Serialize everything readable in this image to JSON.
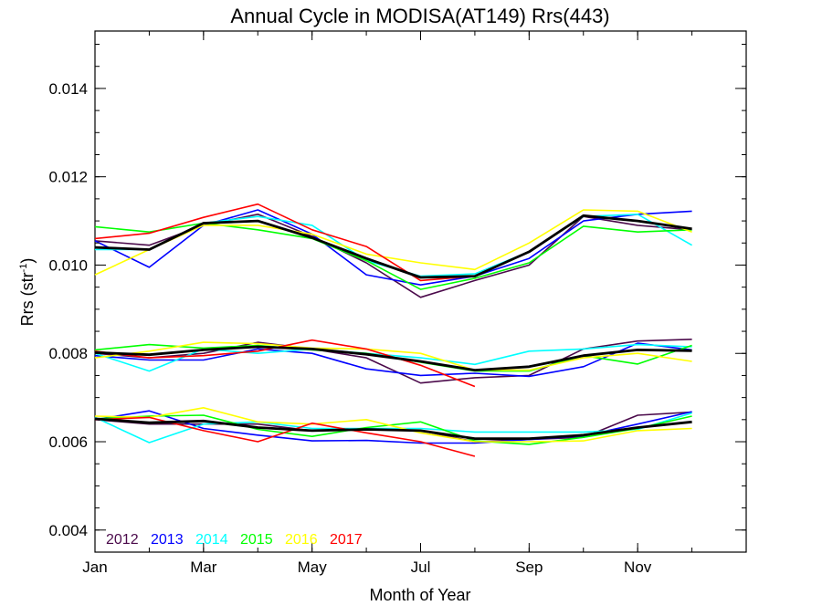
{
  "chart_data": {
    "type": "line",
    "title": "Annual Cycle in MODISA(AT149) Rrs(443)",
    "xlabel": "Month of Year",
    "ylabel": "Rrs (str",
    "ylabel_sup": "-1",
    "ylabel_close": ")",
    "xlim": [
      1,
      13
    ],
    "ylim": [
      0.0035,
      0.0153
    ],
    "x_ticks": [
      {
        "value": 1,
        "label": "Jan"
      },
      {
        "value": 3,
        "label": "Mar"
      },
      {
        "value": 5,
        "label": "May"
      },
      {
        "value": 7,
        "label": "Jul"
      },
      {
        "value": 9,
        "label": "Sep"
      },
      {
        "value": 11,
        "label": "Nov"
      }
    ],
    "y_ticks": [
      {
        "value": 0.004,
        "label": "0.004"
      },
      {
        "value": 0.006,
        "label": "0.006"
      },
      {
        "value": 0.008,
        "label": "0.008"
      },
      {
        "value": 0.01,
        "label": "0.010"
      },
      {
        "value": 0.012,
        "label": "0.012"
      },
      {
        "value": 0.014,
        "label": "0.014"
      }
    ],
    "grid": false,
    "legend_position": "bottom-left",
    "x": [
      1,
      2,
      3,
      4,
      5,
      6,
      7,
      8,
      9,
      10,
      11,
      12
    ],
    "series": [
      {
        "name": "2012",
        "color": "#4b0a4b",
        "groups": [
          [
            0.01055,
            0.01045,
            0.0109,
            0.01115,
            0.01065,
            0.01005,
            0.00927,
            0.00965,
            0.01,
            0.0111,
            0.0109,
            0.0108
          ],
          [
            0.008,
            0.0079,
            0.008,
            0.00825,
            0.0081,
            0.0079,
            0.00733,
            0.00745,
            0.0075,
            0.0081,
            0.00828,
            0.00832
          ],
          [
            0.0065,
            0.0064,
            0.0064,
            0.0064,
            0.00625,
            0.0063,
            0.00625,
            0.006,
            0.00605,
            0.0061,
            0.0066,
            0.00667
          ]
        ]
      },
      {
        "name": "2013",
        "color": "#0000ff",
        "groups": [
          [
            0.01055,
            0.00995,
            0.0109,
            0.01125,
            0.0107,
            0.00978,
            0.00955,
            0.00975,
            0.01015,
            0.011,
            0.01115,
            0.01122
          ],
          [
            0.00795,
            0.00785,
            0.00785,
            0.0081,
            0.008,
            0.00765,
            0.0075,
            0.00755,
            0.00748,
            0.0077,
            0.00823,
            0.00808
          ],
          [
            0.0065,
            0.0067,
            0.0063,
            0.00615,
            0.00602,
            0.00603,
            0.00597,
            0.00597,
            0.00605,
            0.00613,
            0.0064,
            0.00668
          ]
        ]
      },
      {
        "name": "2014",
        "color": "#00ffff",
        "groups": [
          [
            0.01035,
            0.01035,
            0.01095,
            0.0111,
            0.0109,
            0.0101,
            0.00975,
            0.0098,
            0.0103,
            0.0111,
            0.01115,
            0.01045
          ],
          [
            0.008,
            0.0076,
            0.0081,
            0.008,
            0.0081,
            0.008,
            0.0079,
            0.00775,
            0.00805,
            0.0081,
            0.0082,
            0.00815
          ],
          [
            0.00655,
            0.00598,
            0.0064,
            0.00645,
            0.0063,
            0.0063,
            0.0063,
            0.00622,
            0.00622,
            0.00622,
            0.00628,
            0.00665
          ]
        ]
      },
      {
        "name": "2015",
        "color": "#00ff00",
        "groups": [
          [
            0.01087,
            0.01075,
            0.01095,
            0.0108,
            0.0106,
            0.0101,
            0.00945,
            0.0097,
            0.01005,
            0.01088,
            0.01075,
            0.0108
          ],
          [
            0.00808,
            0.0082,
            0.00812,
            0.00818,
            0.00808,
            0.008,
            0.0078,
            0.0076,
            0.0076,
            0.00795,
            0.00776,
            0.00818
          ],
          [
            0.00652,
            0.00658,
            0.0066,
            0.00628,
            0.00612,
            0.00632,
            0.00645,
            0.00602,
            0.00594,
            0.0061,
            0.0063,
            0.00658
          ]
        ]
      },
      {
        "name": "2016",
        "color": "#ffff00",
        "groups": [
          [
            0.00978,
            0.01035,
            0.0109,
            0.0109,
            0.0107,
            0.01025,
            0.01005,
            0.0099,
            0.0105,
            0.01125,
            0.01122,
            0.01075
          ],
          [
            0.0079,
            0.00805,
            0.00825,
            0.00822,
            0.00812,
            0.0081,
            0.008,
            0.00762,
            0.00762,
            0.0079,
            0.008,
            0.00782
          ],
          [
            0.00658,
            0.00655,
            0.00677,
            0.00645,
            0.0064,
            0.0065,
            0.0062,
            0.006,
            0.006,
            0.00602,
            0.00625,
            0.0063
          ]
        ]
      },
      {
        "name": "2017",
        "color": "#ff0000",
        "groups": [
          [
            0.0106,
            0.01072,
            0.01108,
            0.01138,
            0.0108,
            0.01042,
            0.00965,
            0.00975
          ],
          [
            0.00805,
            0.0079,
            0.00795,
            0.00805,
            0.0083,
            0.0081,
            0.00773,
            0.00725
          ],
          [
            0.0065,
            0.00655,
            0.00625,
            0.006,
            0.00642,
            0.0062,
            0.006,
            0.00567
          ]
        ]
      },
      {
        "name": "",
        "color": "#000000",
        "groups": [
          [
            0.0104,
            0.01035,
            0.01095,
            0.011,
            0.01062,
            0.01015,
            0.00972,
            0.00975,
            0.0103,
            0.01112,
            0.011,
            0.01082
          ],
          [
            0.00802,
            0.00797,
            0.00808,
            0.00815,
            0.0081,
            0.00798,
            0.00782,
            0.00762,
            0.0077,
            0.00795,
            0.00808,
            0.00806
          ],
          [
            0.00652,
            0.00643,
            0.00647,
            0.00632,
            0.00625,
            0.00628,
            0.00625,
            0.00607,
            0.00607,
            0.00615,
            0.00632,
            0.00645
          ]
        ]
      }
    ],
    "legend": [
      {
        "label": "2012",
        "color": "#4b0a4b"
      },
      {
        "label": "2013",
        "color": "#0000ff"
      },
      {
        "label": "2014",
        "color": "#00ffff"
      },
      {
        "label": "2015",
        "color": "#00ff00"
      },
      {
        "label": "2016",
        "color": "#ffff00"
      },
      {
        "label": "2017",
        "color": "#ff0000"
      }
    ]
  }
}
